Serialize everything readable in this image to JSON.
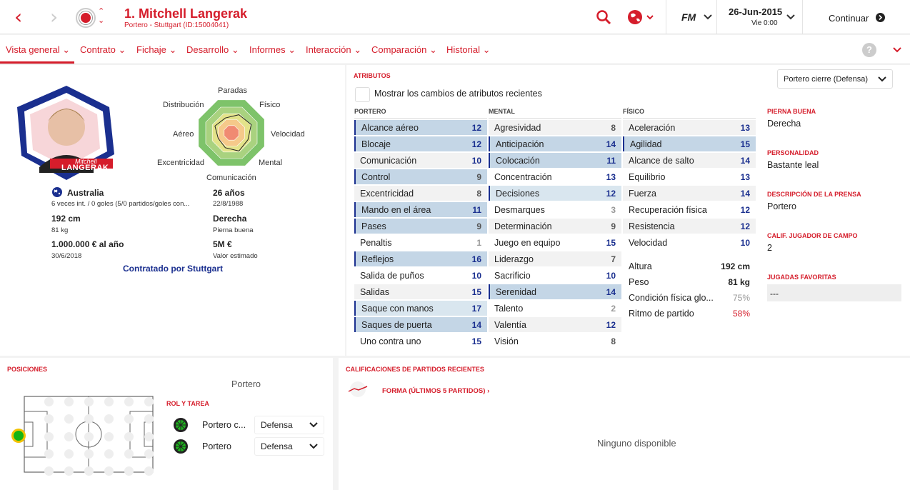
{
  "header": {
    "name": "1. Mitchell Langerak",
    "sub": "Portero - Stuttgart (ID:15004041)",
    "fm": "FM",
    "date": "26-Jun-2015",
    "day": "Vie 0:00",
    "continue": "Continuar"
  },
  "tabs": [
    "Vista general",
    "Contrato",
    "Fichaje",
    "Desarrollo",
    "Informes",
    "Interacción",
    "Comparación",
    "Historial"
  ],
  "help": "?",
  "profile": {
    "photo_name": "Mitchell",
    "photo_surname": "LANGERAK",
    "nationality": "Australia",
    "caps": "6 veces int. / 0 goles (5/0 partidos/goles con...",
    "age": "26 años",
    "dob": "22/8/1988",
    "height": "192 cm",
    "weight": "81 kg",
    "foot": "Derecha",
    "foot_label": "Pierna buena",
    "wage": "1.000.000 € al año",
    "contract_end": "30/6/2018",
    "value": "5M €",
    "value_label": "Valor estimado",
    "contracted": "Contratado por Stuttgart"
  },
  "radar": {
    "labels": [
      "Paradas",
      "Físico",
      "Velocidad",
      "Mental",
      "Comunicación",
      "Excentricidad",
      "Aéreo",
      "Distribución"
    ],
    "values": [
      0.55,
      0.6,
      0.5,
      0.55,
      0.45,
      0.4,
      0.5,
      0.45
    ]
  },
  "attributes": {
    "title": "ATRIBUTOS",
    "show_changes": "Mostrar los cambios de atributos recientes",
    "role_select": "Portero cierre (Defensa)",
    "portero_head": "PORTERO",
    "mental_head": "MENTAL",
    "fisico_head": "FÍSICO",
    "portero": [
      [
        "Alcance aéreo",
        "12",
        2
      ],
      [
        "Blocaje",
        "12",
        2
      ],
      [
        "Comunicación",
        "10",
        0
      ],
      [
        "Control",
        "9",
        1
      ],
      [
        "Excentricidad",
        "8",
        0
      ],
      [
        "Mando en el área",
        "11",
        2
      ],
      [
        "Pases",
        "9",
        2
      ],
      [
        "Penaltis",
        "1",
        0
      ],
      [
        "Reflejos",
        "16",
        2
      ],
      [
        "Salida de puños",
        "10",
        0
      ],
      [
        "Salidas",
        "15",
        0
      ],
      [
        "Saque con manos",
        "17",
        3
      ],
      [
        "Saques de puerta",
        "14",
        2
      ],
      [
        "Uno contra uno",
        "15",
        0
      ]
    ],
    "mental": [
      [
        "Agresividad",
        "8",
        0
      ],
      [
        "Anticipación",
        "14",
        2
      ],
      [
        "Colocación",
        "11",
        2
      ],
      [
        "Concentración",
        "13",
        0
      ],
      [
        "Decisiones",
        "12",
        3
      ],
      [
        "Desmarques",
        "3",
        0
      ],
      [
        "Determinación",
        "9",
        0
      ],
      [
        "Juego en equipo",
        "15",
        0
      ],
      [
        "Liderazgo",
        "7",
        0
      ],
      [
        "Sacrificio",
        "10",
        0
      ],
      [
        "Serenidad",
        "14",
        2
      ],
      [
        "Talento",
        "2",
        0
      ],
      [
        "Valentía",
        "12",
        0
      ],
      [
        "Visión",
        "8",
        0
      ]
    ],
    "fisico": [
      [
        "Aceleración",
        "13",
        0
      ],
      [
        "Agilidad",
        "15",
        2
      ],
      [
        "Alcance de salto",
        "14",
        0
      ],
      [
        "Equilibrio",
        "13",
        0
      ],
      [
        "Fuerza",
        "14",
        0
      ],
      [
        "Recuperación física",
        "12",
        0
      ],
      [
        "Resistencia",
        "12",
        0
      ],
      [
        "Velocidad",
        "10",
        0
      ]
    ],
    "extra": [
      [
        "Altura",
        "192 cm"
      ],
      [
        "Peso",
        "81 kg"
      ],
      [
        "Condición física glo...",
        "75%"
      ],
      [
        "Ritmo de partido",
        "58%"
      ]
    ]
  },
  "side": {
    "foot_title": "PIERNA BUENA",
    "foot": "Derecha",
    "pers_title": "PERSONALIDAD",
    "pers": "Bastante leal",
    "press_title": "DESCRIPCIÓN DE LA PRENSA",
    "press": "Portero",
    "outfield_title": "CALIF. JUGADOR DE CAMPO",
    "outfield": "2",
    "moves_title": "JUGADAS FAVORITAS",
    "moves": "---"
  },
  "positions": {
    "title": "POSICIONES",
    "position": "Portero",
    "role_title": "ROL Y TAREA",
    "roles": [
      [
        "Portero c...",
        "Defensa"
      ],
      [
        "Portero",
        "Defensa"
      ]
    ]
  },
  "ratings": {
    "title": "CALIFICACIONES DE PARTIDOS RECIENTES",
    "form": "FORMA (ÚLTIMOS 5 PARTIDOS) ›",
    "none": "Ninguno disponible"
  },
  "colors": {
    "accent": "#d51d2b",
    "blue": "#1a2f8f",
    "highlight": "#c4d6e6",
    "highlight2": "#d9e6ef"
  }
}
